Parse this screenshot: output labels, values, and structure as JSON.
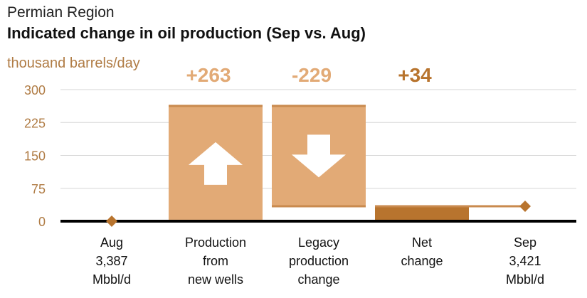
{
  "header": {
    "region": "Permian Region",
    "title": "Indicated change in oil production (Sep vs. Aug)",
    "ylabel": "thousand barrels/day"
  },
  "colors": {
    "light_bar": "#e2aa76",
    "edge_line": "#c98a4e",
    "net_bar": "#b8742e",
    "axis_text": "#b07c45",
    "grid": "#d6d6d6",
    "baseline": "#000000"
  },
  "chart_data": {
    "type": "bar",
    "subtype": "waterfall",
    "title": "Indicated change in oil production (Sep vs. Aug)",
    "ylabel": "thousand barrels/day",
    "ylim": [
      0,
      300
    ],
    "yticks": [
      "0",
      "75",
      "150",
      "225",
      "300"
    ],
    "grid": true,
    "categories": [
      {
        "lines": [
          "Aug",
          "3,387",
          "Mbbl/d"
        ]
      },
      {
        "lines": [
          "Production",
          "from",
          "new wells"
        ]
      },
      {
        "lines": [
          "Legacy",
          "production",
          "change"
        ]
      },
      {
        "lines": [
          "Net",
          "change"
        ]
      },
      {
        "lines": [
          "Sep",
          "3,421",
          "Mbbl/d"
        ]
      }
    ],
    "steps": [
      {
        "kind": "start",
        "value": 0
      },
      {
        "kind": "increase",
        "value": 263,
        "label": "+263",
        "icon": "up-arrow-icon"
      },
      {
        "kind": "decrease",
        "value": -229,
        "label": "-229",
        "icon": "down-arrow-icon"
      },
      {
        "kind": "net",
        "value": 34,
        "label": "+34"
      },
      {
        "kind": "end",
        "value": 34
      }
    ]
  }
}
